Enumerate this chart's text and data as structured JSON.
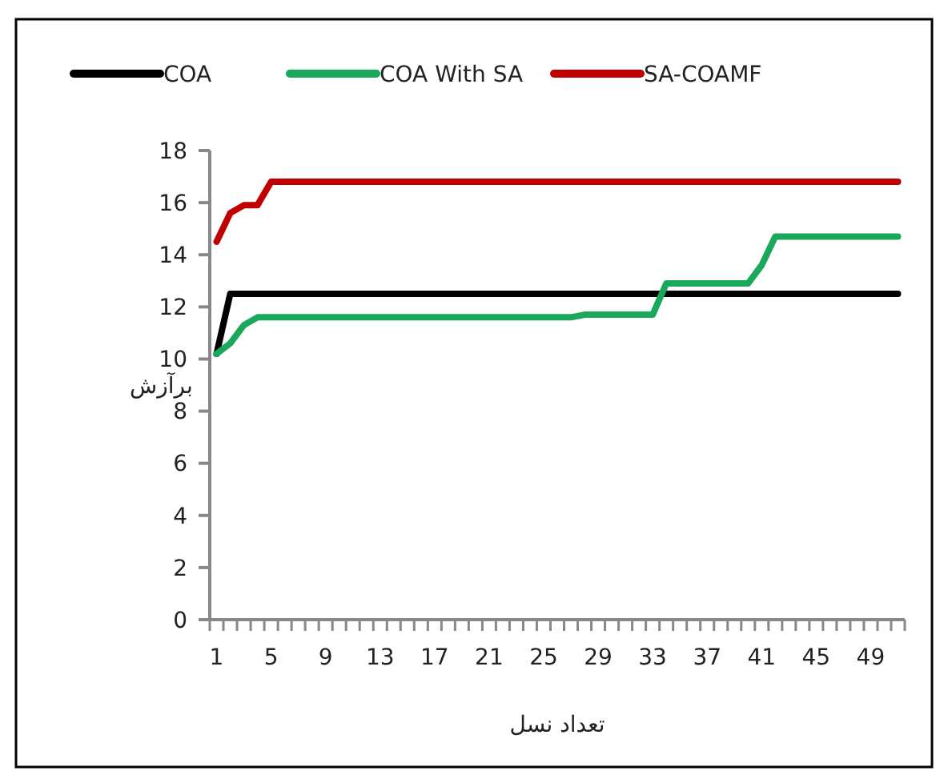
{
  "chart_data": {
    "type": "line",
    "xlabel": "تعداد نسل",
    "ylabel": "برآزش",
    "categories": [
      "1",
      null,
      null,
      null,
      "5",
      null,
      null,
      null,
      "9",
      null,
      null,
      null,
      "13",
      null,
      null,
      null,
      "17",
      null,
      null,
      null,
      "21",
      null,
      null,
      null,
      "25",
      null,
      null,
      null,
      "29",
      null,
      null,
      null,
      "33",
      null,
      null,
      null,
      "37",
      null,
      null,
      null,
      "41",
      null,
      null,
      null,
      "45",
      null,
      null,
      null,
      "49",
      null,
      null
    ],
    "series": [
      {
        "name": "COA",
        "color": "#000000",
        "values": [
          10.2,
          12.5,
          12.5,
          12.5,
          12.5,
          12.5,
          12.5,
          12.5,
          12.5,
          12.5,
          12.5,
          12.5,
          12.5,
          12.5,
          12.5,
          12.5,
          12.5,
          12.5,
          12.5,
          12.5,
          12.5,
          12.5,
          12.5,
          12.5,
          12.5,
          12.5,
          12.5,
          12.5,
          12.5,
          12.5,
          12.5,
          12.5,
          12.5,
          12.5,
          12.5,
          12.5,
          12.5,
          12.5,
          12.5,
          12.5,
          12.5,
          12.5,
          12.5,
          12.5,
          12.5,
          12.5,
          12.5,
          12.5,
          12.5,
          12.5,
          12.5
        ]
      },
      {
        "name": "COA With SA",
        "color": "#1aa85a",
        "values": [
          10.2,
          10.6,
          11.3,
          11.6,
          11.6,
          11.6,
          11.6,
          11.6,
          11.6,
          11.6,
          11.6,
          11.6,
          11.6,
          11.6,
          11.6,
          11.6,
          11.6,
          11.6,
          11.6,
          11.6,
          11.6,
          11.6,
          11.6,
          11.6,
          11.6,
          11.6,
          11.6,
          11.7,
          11.7,
          11.7,
          11.7,
          11.7,
          11.7,
          12.9,
          12.9,
          12.9,
          12.9,
          12.9,
          12.9,
          12.9,
          13.6,
          14.7,
          14.7,
          14.7,
          14.7,
          14.7,
          14.7,
          14.7,
          14.7,
          14.7,
          14.7
        ]
      },
      {
        "name": "SA-COAMF",
        "color": "#c00000",
        "values": [
          14.5,
          15.6,
          15.9,
          15.9,
          16.8,
          16.8,
          16.8,
          16.8,
          16.8,
          16.8,
          16.8,
          16.8,
          16.8,
          16.8,
          16.8,
          16.8,
          16.8,
          16.8,
          16.8,
          16.8,
          16.8,
          16.8,
          16.8,
          16.8,
          16.8,
          16.8,
          16.8,
          16.8,
          16.8,
          16.8,
          16.8,
          16.8,
          16.8,
          16.8,
          16.8,
          16.8,
          16.8,
          16.8,
          16.8,
          16.8,
          16.8,
          16.8,
          16.8,
          16.8,
          16.8,
          16.8,
          16.8,
          16.8,
          16.8,
          16.8,
          16.8
        ]
      }
    ],
    "ylim": [
      0,
      18
    ],
    "yticks": [
      0,
      2,
      4,
      6,
      8,
      10,
      12,
      14,
      16,
      18
    ],
    "grid": false,
    "legend": "top",
    "marker": "none",
    "line_style": "solid"
  }
}
